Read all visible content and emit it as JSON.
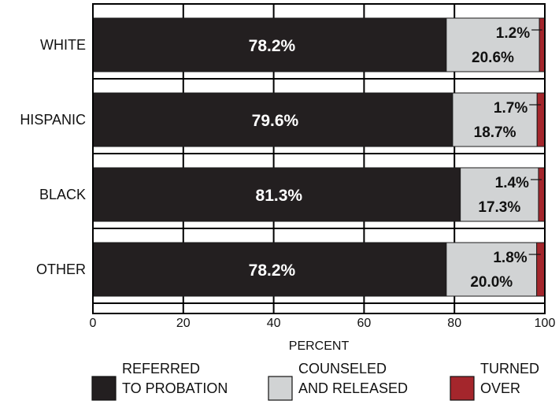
{
  "chart_data": {
    "type": "bar",
    "orientation": "horizontal",
    "stacked": true,
    "categories": [
      "WHITE",
      "HISPANIC",
      "BLACK",
      "OTHER"
    ],
    "series": [
      {
        "name": "REFERRED TO PROBATION",
        "values": [
          78.2,
          79.6,
          81.3,
          78.2
        ],
        "labels": [
          "78.2%",
          "79.6%",
          "81.3%",
          "78.2%"
        ],
        "color": "#231f20"
      },
      {
        "name": "COUNSELED AND RELEASED",
        "values": [
          20.6,
          18.7,
          17.3,
          20.0
        ],
        "labels": [
          "20.6%",
          "18.7%",
          "17.3%",
          "20.0%"
        ],
        "color": "#d1d3d4"
      },
      {
        "name": "TURNED OVER",
        "values": [
          1.2,
          1.7,
          1.4,
          1.8
        ],
        "labels": [
          "1.2%",
          "1.7%",
          "1.4%",
          "1.8%"
        ],
        "color": "#a4262c"
      }
    ],
    "legend": {
      "placement": "bottom",
      "entries": [
        {
          "line1": "REFERRED",
          "line2": "TO PROBATION",
          "color": "#231f20"
        },
        {
          "line1": "COUNSELED",
          "line2": "AND RELEASED",
          "color": "#d1d3d4"
        },
        {
          "line1": "TURNED",
          "line2": "OVER",
          "color": "#a4262c"
        }
      ]
    },
    "xlabel": "PERCENT",
    "xlim": [
      0,
      100
    ],
    "xticks": [
      0,
      20,
      40,
      60,
      80,
      100
    ],
    "grid": "vertical"
  }
}
